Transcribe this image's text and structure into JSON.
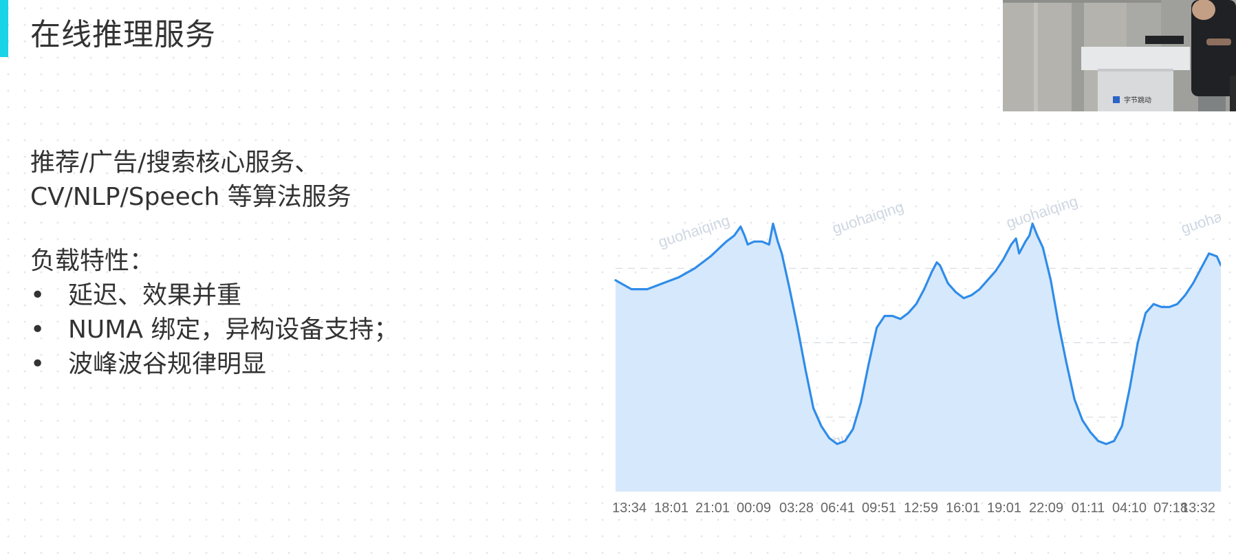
{
  "slide": {
    "title": "在线推理服务",
    "summary": [
      "推荐/广告/搜索核心服务、",
      "CV/NLP/Speech 等算法服务"
    ],
    "traits_heading": "负载特性：",
    "bullet_glyph": "•",
    "traits": [
      "延迟、效果并重",
      "NUMA 绑定，异构设备支持；",
      "波峰波谷规律明显"
    ]
  },
  "video": {
    "podium_logo_text": "字节跳动"
  },
  "chart_data": {
    "type": "area",
    "color": "#2f8ce8",
    "fill_color": "#d6e8fb",
    "grid": "dashed-horizontal",
    "watermark": "guohaiqing",
    "x_tick_labels": [
      "13:34",
      "18:01",
      "21:01",
      "00:09",
      "03:28",
      "06:41",
      "09:51",
      "12:59",
      "16:01",
      "19:01",
      "22:09",
      "01:11",
      "04:10",
      "07:18",
      "13:32"
    ],
    "ylim": [
      0,
      100
    ],
    "series": [
      {
        "values": [
          [
            0,
            71
          ],
          [
            2,
            68
          ],
          [
            4,
            68
          ],
          [
            6,
            70
          ],
          [
            8,
            72
          ],
          [
            10,
            75
          ],
          [
            12,
            79
          ],
          [
            14,
            84
          ],
          [
            15,
            86
          ],
          [
            15.8,
            89
          ],
          [
            16.3,
            86
          ],
          [
            16.7,
            83
          ],
          [
            17.5,
            84
          ],
          [
            18.5,
            84
          ],
          [
            19.4,
            83
          ],
          [
            19.9,
            90
          ],
          [
            20.5,
            84
          ],
          [
            21,
            80
          ],
          [
            22,
            68
          ],
          [
            23,
            55
          ],
          [
            24,
            41
          ],
          [
            25,
            28
          ],
          [
            26,
            22
          ],
          [
            27,
            18
          ],
          [
            28,
            16
          ],
          [
            29,
            17
          ],
          [
            30,
            21
          ],
          [
            31,
            30
          ],
          [
            32,
            43
          ],
          [
            33,
            55
          ],
          [
            34,
            59
          ],
          [
            35,
            59
          ],
          [
            36,
            58
          ],
          [
            37,
            60
          ],
          [
            38,
            63
          ],
          [
            39,
            68
          ],
          [
            40,
            74
          ],
          [
            40.6,
            77
          ],
          [
            41,
            76
          ],
          [
            42,
            70
          ],
          [
            43,
            67
          ],
          [
            44,
            65
          ],
          [
            45,
            66
          ],
          [
            46,
            68
          ],
          [
            47,
            71
          ],
          [
            48,
            74
          ],
          [
            49,
            78
          ],
          [
            50,
            83
          ],
          [
            50.6,
            85
          ],
          [
            51,
            80
          ],
          [
            51.8,
            84
          ],
          [
            52.3,
            86
          ],
          [
            52.7,
            90
          ],
          [
            53.3,
            86
          ],
          [
            54,
            82
          ],
          [
            55,
            71
          ],
          [
            56,
            56
          ],
          [
            57,
            43
          ],
          [
            58,
            31
          ],
          [
            59,
            24
          ],
          [
            60,
            20
          ],
          [
            61,
            17
          ],
          [
            62,
            16
          ],
          [
            63,
            17
          ],
          [
            64,
            22
          ],
          [
            65,
            35
          ],
          [
            66,
            50
          ],
          [
            67,
            60
          ],
          [
            68,
            63
          ],
          [
            69,
            62
          ],
          [
            70,
            62
          ],
          [
            71,
            63
          ],
          [
            72,
            66
          ],
          [
            73,
            70
          ],
          [
            74,
            75
          ],
          [
            75,
            80
          ],
          [
            76,
            79
          ],
          [
            76.5,
            76
          ]
        ]
      }
    ]
  }
}
